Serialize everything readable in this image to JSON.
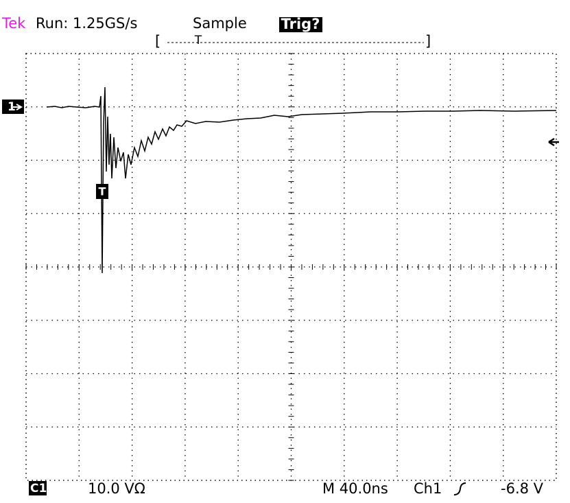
{
  "header": {
    "brand": "Tek",
    "run": "Run: 1.25GS/s",
    "mode": "Sample",
    "trigger_status": "Trig?",
    "record_marker": "T"
  },
  "screen": {
    "channel_marker": "1",
    "trigger_marker": "T"
  },
  "footer": {
    "channel": "C1",
    "scale": "10.0 VΩ",
    "timebase": "M 40.0ns",
    "trigger_source": "Ch1",
    "trigger_level": "-6.8 V"
  }
}
